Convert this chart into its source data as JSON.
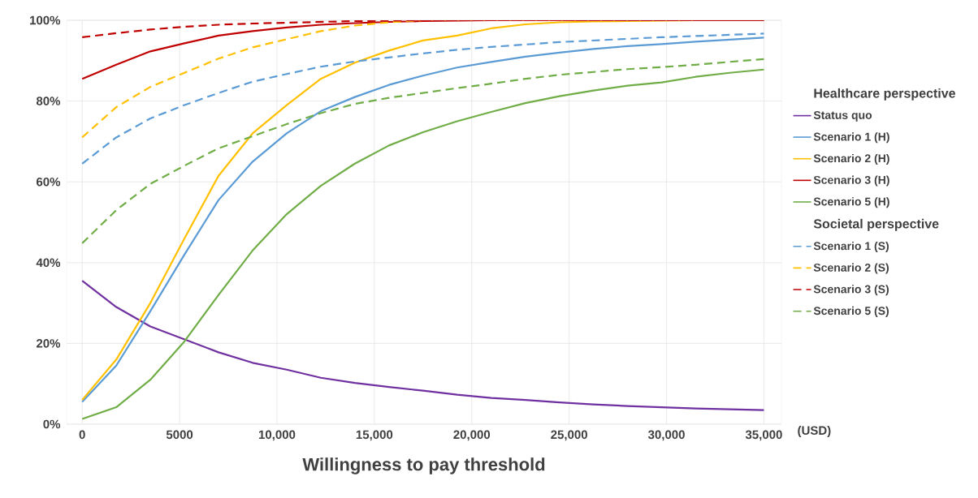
{
  "chart_data": {
    "type": "line",
    "xlabel": "Willingness to pay threshold",
    "legend_title": "Healthcare perspective",
    "annotations": [
      "Societal perspective",
      "(USD)"
    ],
    "x": [
      0,
      1750,
      3500,
      5250,
      7000,
      8750,
      10500,
      12250,
      14000,
      15750,
      17500,
      19250,
      21000,
      22750,
      24500,
      26250,
      28000,
      29750,
      31500,
      33250,
      35000
    ],
    "series": [
      {
        "name": "Status quo",
        "color": "#7030a0",
        "line_style": "solid",
        "values": [
          35.5,
          29,
          24.2,
          21,
          17.8,
          15.2,
          13.5,
          11.5,
          10.2,
          9.2,
          8.3,
          7.3,
          6.5,
          6.0,
          5.4,
          4.9,
          4.5,
          4.2,
          3.9,
          3.7,
          3.5
        ]
      },
      {
        "name": "Scenario 1 (H)",
        "color": "#5b9bd5",
        "line_style": "solid",
        "values": [
          5.5,
          14.5,
          28,
          42,
          55.5,
          65,
          72,
          77.5,
          81,
          84,
          86.3,
          88.3,
          89.7,
          91,
          92,
          92.9,
          93.6,
          94.1,
          94.7,
          95.2,
          95.7
        ]
      },
      {
        "name": "Scenario 2 (H)",
        "color": "#ffc000",
        "line_style": "solid",
        "values": [
          6,
          16,
          30,
          46,
          61.5,
          72,
          79,
          85.5,
          89.5,
          92.5,
          95,
          96.2,
          98,
          99,
          99.5,
          99.7,
          99.8,
          99.9,
          100,
          null,
          null
        ]
      },
      {
        "name": "Scenario 3 (H)",
        "color": "#c00000",
        "line_style": "solid",
        "values": [
          85.5,
          89,
          92.3,
          94.3,
          96.2,
          97.3,
          98.2,
          98.9,
          99.3,
          99.6,
          99.8,
          99.9,
          100,
          100,
          100,
          100,
          100,
          100,
          100,
          100,
          100
        ]
      },
      {
        "name": "Scenario 5 (H)",
        "color": "#70ad47",
        "line_style": "solid",
        "values": [
          1.3,
          4.2,
          11,
          20.5,
          32,
          43,
          52,
          59,
          64.5,
          69,
          72.3,
          75,
          77.3,
          79.5,
          81.2,
          82.6,
          83.8,
          84.6,
          86,
          87,
          87.8
        ]
      },
      {
        "name": "Scenario 1 (S)",
        "color": "#5b9bd5",
        "line_style": "dashed",
        "values": [
          64.5,
          71,
          75.7,
          79,
          82,
          84.8,
          86.7,
          88.5,
          89.8,
          90.8,
          91.8,
          92.7,
          93.4,
          94,
          94.6,
          95,
          95.4,
          95.8,
          96.1,
          96.4,
          96.7
        ]
      },
      {
        "name": "Scenario 2 (S)",
        "color": "#ffc000",
        "line_style": "dashed",
        "values": [
          71,
          78.5,
          83.5,
          87,
          90.5,
          93.3,
          95.3,
          97.3,
          98.7,
          99.5,
          100,
          100,
          100,
          100,
          100,
          100,
          100,
          100,
          100,
          null,
          null
        ]
      },
      {
        "name": "Scenario 3 (S)",
        "color": "#c00000",
        "line_style": "dashed",
        "values": [
          95.8,
          96.8,
          97.7,
          98.4,
          98.9,
          99.2,
          99.4,
          99.6,
          99.8,
          99.9,
          100,
          100,
          100,
          100,
          100,
          100,
          100,
          100,
          100,
          100,
          100
        ]
      },
      {
        "name": "Scenario 5 (S)",
        "color": "#70ad47",
        "line_style": "dashed",
        "values": [
          44.8,
          53,
          59.5,
          64,
          68.3,
          71.3,
          74.3,
          77,
          79.3,
          80.8,
          82,
          83.2,
          84.3,
          85.5,
          86.5,
          87.2,
          87.9,
          88.4,
          89,
          89.7,
          90.4
        ]
      }
    ],
    "xlim": [
      -800,
      35900
    ],
    "ylim": [
      0,
      100
    ],
    "xticks": [
      0,
      5000,
      {
        "value": 10000,
        "label": "10,000"
      },
      {
        "value": 15000,
        "label": "15,000"
      },
      {
        "value": 20000,
        "label": "20,000"
      },
      {
        "value": 25000,
        "label": "25,000"
      },
      {
        "value": 30000,
        "label": "30,000"
      },
      {
        "value": 35000,
        "label": "35,000"
      }
    ],
    "yticks": [
      {
        "value": 0,
        "label": "0%"
      },
      {
        "value": 20,
        "label": "20%"
      },
      {
        "value": 40,
        "label": "40%"
      },
      {
        "value": 60,
        "label": "60%"
      },
      {
        "value": 80,
        "label": "80%"
      },
      {
        "value": 100,
        "label": "100%"
      }
    ],
    "grid": true,
    "legend": "right"
  }
}
